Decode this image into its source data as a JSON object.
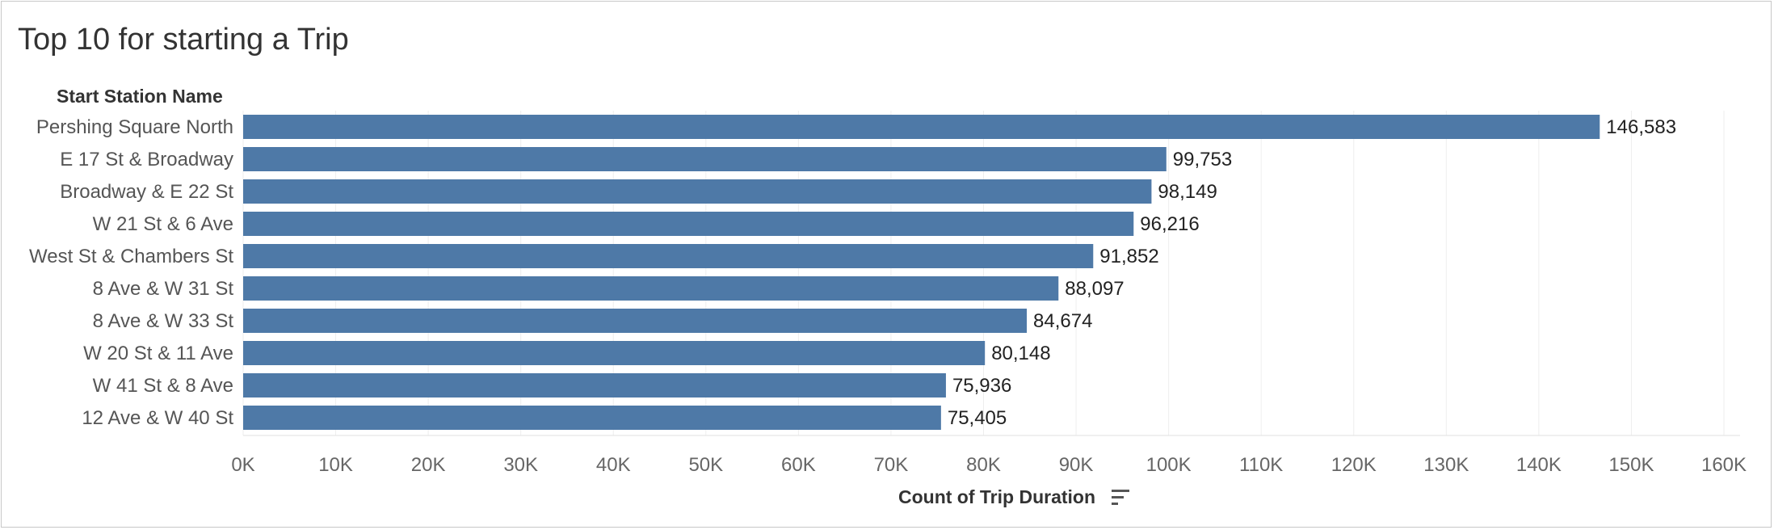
{
  "title": "Top 10 for starting a Trip",
  "row_header": "Start Station Name",
  "x_axis_title": "Count of Trip Duration",
  "bar_color": "#4e79a7",
  "sort_icon": "sort-descending-icon",
  "chart_data": {
    "type": "bar",
    "orientation": "horizontal",
    "title": "Top 10 for starting a Trip",
    "ylabel": "Start Station Name",
    "xlabel": "Count of Trip Duration",
    "categories": [
      "Pershing Square North",
      "E 17 St & Broadway",
      "Broadway & E 22 St",
      "W 21 St & 6 Ave",
      "West St & Chambers St",
      "8 Ave & W 31 St",
      "8 Ave & W 33 St",
      "W 20 St & 11 Ave",
      "W 41 St & 8 Ave",
      "12 Ave & W 40 St"
    ],
    "values": [
      146583,
      99753,
      98149,
      96216,
      91852,
      88097,
      84674,
      80148,
      75936,
      75405
    ],
    "value_labels": [
      "146,583",
      "99,753",
      "98,149",
      "96,216",
      "91,852",
      "88,097",
      "84,674",
      "80,148",
      "75,936",
      "75,405"
    ],
    "xlim": [
      0,
      160000
    ],
    "xticks": [
      0,
      10000,
      20000,
      30000,
      40000,
      50000,
      60000,
      70000,
      80000,
      90000,
      100000,
      110000,
      120000,
      130000,
      140000,
      150000,
      160000
    ],
    "xtick_labels": [
      "0K",
      "10K",
      "20K",
      "30K",
      "40K",
      "50K",
      "60K",
      "70K",
      "80K",
      "90K",
      "100K",
      "110K",
      "120K",
      "130K",
      "140K",
      "150K",
      "160K"
    ],
    "grid": true
  }
}
